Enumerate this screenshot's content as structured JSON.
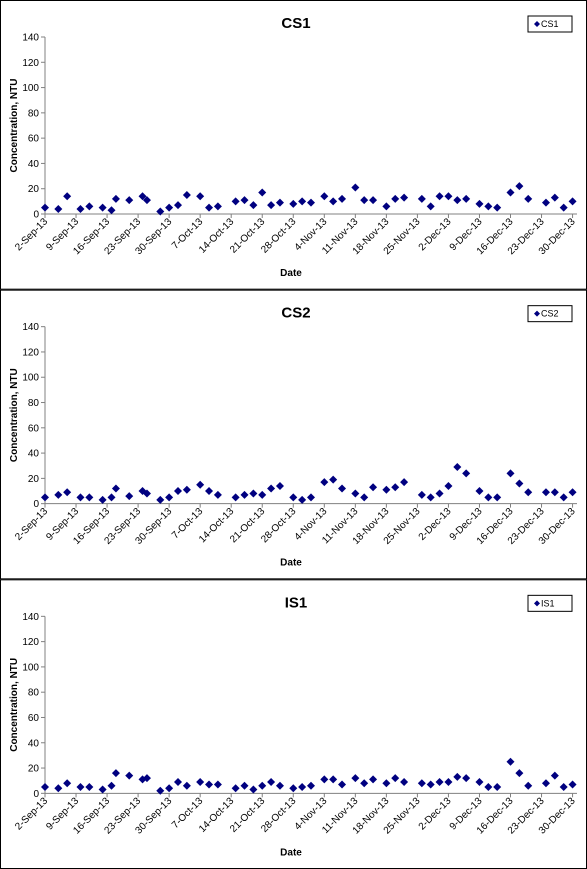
{
  "chart_data": [
    {
      "type": "scatter",
      "title": "CS1",
      "x_label": "Date",
      "y_label": "Concentration, NTU",
      "x": [
        "2-Sep-13",
        "5-Sep-13",
        "7-Sep-13",
        "10-Sep-13",
        "12-Sep-13",
        "15-Sep-13",
        "17-Sep-13",
        "18-Sep-13",
        "21-Sep-13",
        "24-Sep-13",
        "25-Sep-13",
        "28-Sep-13",
        "30-Sep-13",
        "2-Oct-13",
        "4-Oct-13",
        "7-Oct-13",
        "9-Oct-13",
        "11-Oct-13",
        "15-Oct-13",
        "17-Oct-13",
        "19-Oct-13",
        "21-Oct-13",
        "23-Oct-13",
        "25-Oct-13",
        "28-Oct-13",
        "30-Oct-13",
        "1-Nov-13",
        "4-Nov-13",
        "6-Nov-13",
        "8-Nov-13",
        "11-Nov-13",
        "13-Nov-13",
        "15-Nov-13",
        "18-Nov-13",
        "20-Nov-13",
        "22-Nov-13",
        "26-Nov-13",
        "28-Nov-13",
        "30-Nov-13",
        "2-Dec-13",
        "4-Dec-13",
        "6-Dec-13",
        "9-Dec-13",
        "11-Dec-13",
        "13-Dec-13",
        "16-Dec-13",
        "18-Dec-13",
        "20-Dec-13",
        "24-Dec-13",
        "26-Dec-13",
        "28-Dec-13",
        "30-Dec-13"
      ],
      "series": [
        {
          "name": "CS1",
          "color": "#000080",
          "values": [
            5,
            4,
            14,
            4,
            6,
            5,
            3,
            12,
            11,
            14,
            11,
            2,
            5,
            7,
            15,
            14,
            5,
            6,
            10,
            11,
            7,
            17,
            7,
            9,
            8,
            10,
            9,
            14,
            10,
            12,
            21,
            11,
            11,
            6,
            12,
            13,
            12,
            6,
            14,
            14,
            11,
            12,
            8,
            6,
            5,
            17,
            22,
            12,
            9,
            13,
            5,
            10
          ]
        }
      ],
      "xlim": [
        "2-Sep-13",
        "31-Dec-13"
      ],
      "xticks": [
        "2-Sep-13",
        "9-Sep-13",
        "16-Sep-13",
        "23-Sep-13",
        "30-Sep-13",
        "7-Oct-13",
        "14-Oct-13",
        "21-Oct-13",
        "28-Oct-13",
        "4-Nov-13",
        "11-Nov-13",
        "18-Nov-13",
        "25-Nov-13",
        "2-Dec-13",
        "9-Dec-13",
        "16-Dec-13",
        "23-Dec-13",
        "30-Dec-13"
      ],
      "ylim": [
        0,
        140
      ],
      "yticks": [
        0,
        20,
        40,
        60,
        80,
        100,
        120,
        140
      ],
      "legend": "top-right",
      "grid": false
    },
    {
      "type": "scatter",
      "title": "CS2",
      "x_label": "Date",
      "y_label": "Concentration, NTU",
      "x": [
        "2-Sep-13",
        "5-Sep-13",
        "7-Sep-13",
        "10-Sep-13",
        "12-Sep-13",
        "15-Sep-13",
        "17-Sep-13",
        "18-Sep-13",
        "21-Sep-13",
        "24-Sep-13",
        "25-Sep-13",
        "28-Sep-13",
        "30-Sep-13",
        "2-Oct-13",
        "4-Oct-13",
        "7-Oct-13",
        "9-Oct-13",
        "11-Oct-13",
        "15-Oct-13",
        "17-Oct-13",
        "19-Oct-13",
        "21-Oct-13",
        "23-Oct-13",
        "25-Oct-13",
        "28-Oct-13",
        "30-Oct-13",
        "1-Nov-13",
        "4-Nov-13",
        "6-Nov-13",
        "8-Nov-13",
        "11-Nov-13",
        "13-Nov-13",
        "15-Nov-13",
        "18-Nov-13",
        "20-Nov-13",
        "22-Nov-13",
        "26-Nov-13",
        "28-Nov-13",
        "30-Nov-13",
        "2-Dec-13",
        "4-Dec-13",
        "6-Dec-13",
        "9-Dec-13",
        "11-Dec-13",
        "13-Dec-13",
        "16-Dec-13",
        "18-Dec-13",
        "20-Dec-13",
        "24-Dec-13",
        "26-Dec-13",
        "28-Dec-13",
        "30-Dec-13"
      ],
      "series": [
        {
          "name": "CS2",
          "color": "#000080",
          "values": [
            5,
            7,
            9,
            5,
            5,
            3,
            5,
            12,
            6,
            10,
            8,
            3,
            5,
            10,
            11,
            15,
            10,
            7,
            5,
            7,
            8,
            7,
            12,
            14,
            5,
            3,
            5,
            17,
            19,
            12,
            8,
            5,
            13,
            11,
            13,
            17,
            7,
            5,
            8,
            14,
            29,
            24,
            10,
            5,
            5,
            24,
            16,
            9,
            9,
            9,
            5,
            9
          ]
        }
      ],
      "xlim": [
        "2-Sep-13",
        "31-Dec-13"
      ],
      "xticks": [
        "2-Sep-13",
        "9-Sep-13",
        "16-Sep-13",
        "23-Sep-13",
        "30-Sep-13",
        "7-Oct-13",
        "14-Oct-13",
        "21-Oct-13",
        "28-Oct-13",
        "4-Nov-13",
        "11-Nov-13",
        "18-Nov-13",
        "25-Nov-13",
        "2-Dec-13",
        "9-Dec-13",
        "16-Dec-13",
        "23-Dec-13",
        "30-Dec-13"
      ],
      "ylim": [
        0,
        140
      ],
      "yticks": [
        0,
        20,
        40,
        60,
        80,
        100,
        120,
        140
      ],
      "legend": "top-right",
      "grid": false
    },
    {
      "type": "scatter",
      "title": "IS1",
      "x_label": "Date",
      "y_label": "Concentration, NTU",
      "x": [
        "2-Sep-13",
        "5-Sep-13",
        "7-Sep-13",
        "10-Sep-13",
        "12-Sep-13",
        "15-Sep-13",
        "17-Sep-13",
        "18-Sep-13",
        "21-Sep-13",
        "24-Sep-13",
        "25-Sep-13",
        "28-Sep-13",
        "30-Sep-13",
        "2-Oct-13",
        "4-Oct-13",
        "7-Oct-13",
        "9-Oct-13",
        "11-Oct-13",
        "15-Oct-13",
        "17-Oct-13",
        "19-Oct-13",
        "21-Oct-13",
        "23-Oct-13",
        "25-Oct-13",
        "28-Oct-13",
        "30-Oct-13",
        "1-Nov-13",
        "4-Nov-13",
        "6-Nov-13",
        "8-Nov-13",
        "11-Nov-13",
        "13-Nov-13",
        "15-Nov-13",
        "18-Nov-13",
        "20-Nov-13",
        "22-Nov-13",
        "26-Nov-13",
        "28-Nov-13",
        "30-Nov-13",
        "2-Dec-13",
        "4-Dec-13",
        "6-Dec-13",
        "9-Dec-13",
        "11-Dec-13",
        "13-Dec-13",
        "16-Dec-13",
        "18-Dec-13",
        "20-Dec-13",
        "24-Dec-13",
        "26-Dec-13",
        "28-Dec-13",
        "30-Dec-13"
      ],
      "series": [
        {
          "name": "IS1",
          "color": "#000080",
          "values": [
            5,
            4,
            8,
            5,
            5,
            3,
            6,
            16,
            14,
            11,
            12,
            2,
            4,
            9,
            6,
            9,
            7,
            7,
            4,
            6,
            3,
            6,
            9,
            6,
            4,
            5,
            6,
            11,
            11,
            7,
            12,
            8,
            11,
            8,
            12,
            9,
            8,
            7,
            9,
            9,
            13,
            12,
            9,
            5,
            5,
            25,
            16,
            6,
            8,
            14,
            5,
            7
          ]
        }
      ],
      "xlim": [
        "2-Sep-13",
        "31-Dec-13"
      ],
      "xticks": [
        "2-Sep-13",
        "9-Sep-13",
        "16-Sep-13",
        "23-Sep-13",
        "30-Sep-13",
        "7-Oct-13",
        "14-Oct-13",
        "21-Oct-13",
        "28-Oct-13",
        "4-Nov-13",
        "11-Nov-13",
        "18-Nov-13",
        "25-Nov-13",
        "2-Dec-13",
        "9-Dec-13",
        "16-Dec-13",
        "23-Dec-13",
        "30-Dec-13"
      ],
      "ylim": [
        0,
        140
      ],
      "yticks": [
        0,
        20,
        40,
        60,
        80,
        100,
        120,
        140
      ],
      "legend": "top-right",
      "grid": false
    }
  ]
}
